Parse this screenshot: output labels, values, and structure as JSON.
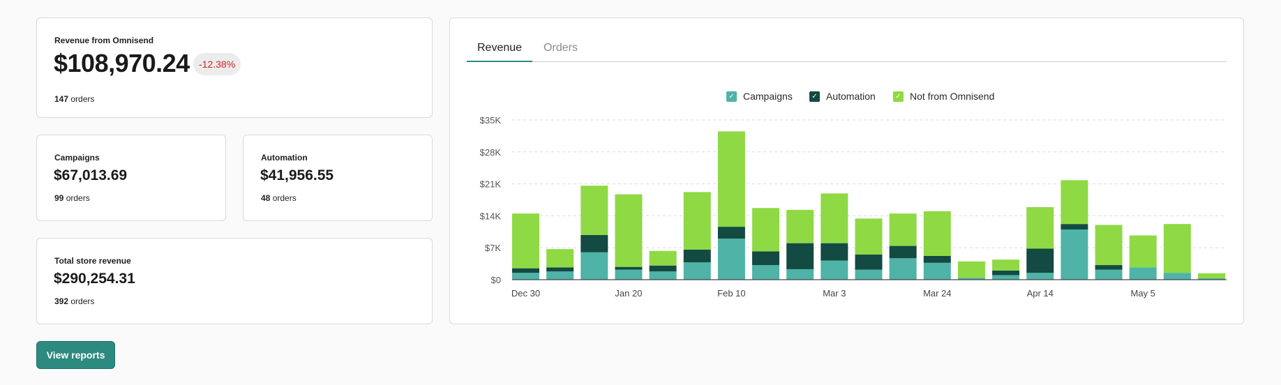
{
  "summary": {
    "main": {
      "label": "Revenue from Omnisend",
      "value": "$108,970.24",
      "change": "-12.38%",
      "orders_count": "147",
      "orders_word": "orders"
    },
    "campaigns": {
      "label": "Campaigns",
      "value": "$67,013.69",
      "orders_count": "99",
      "orders_word": "orders"
    },
    "automation": {
      "label": "Automation",
      "value": "$41,956.55",
      "orders_count": "48",
      "orders_word": "orders"
    },
    "total": {
      "label": "Total store revenue",
      "value": "$290,254.31",
      "orders_count": "392",
      "orders_word": "orders"
    }
  },
  "button": {
    "label": "View reports"
  },
  "tabs": [
    {
      "label": "Revenue"
    },
    {
      "label": "Orders"
    }
  ],
  "legend": [
    {
      "label": "Campaigns",
      "color": "#4fb3a7"
    },
    {
      "label": "Automation",
      "color": "#134a42"
    },
    {
      "label": "Not from Omnisend",
      "color": "#8fd944"
    }
  ],
  "chart_data": {
    "type": "bar",
    "stacked": true,
    "y_tick_labels": [
      "$0",
      "$7K",
      "$14K",
      "$21K",
      "$28K",
      "$35K"
    ],
    "ylim": [
      0,
      35000
    ],
    "x_tick_labels": [
      {
        "index": 0,
        "label": "Dec 30"
      },
      {
        "index": 3,
        "label": "Jan 20"
      },
      {
        "index": 6,
        "label": "Feb 10"
      },
      {
        "index": 9,
        "label": "Mar 3"
      },
      {
        "index": 12,
        "label": "Mar 24"
      },
      {
        "index": 15,
        "label": "Apr 14"
      },
      {
        "index": 18,
        "label": "May 5"
      }
    ],
    "grid": true,
    "legend_position": "top",
    "series": [
      {
        "name": "Campaigns",
        "color": "#4fb3a7",
        "values": [
          1500,
          1800,
          6000,
          2200,
          1800,
          3800,
          9000,
          3200,
          2300,
          4200,
          2200,
          4700,
          3700,
          400,
          1000,
          1500,
          11000,
          2200,
          2700,
          1500,
          300
        ]
      },
      {
        "name": "Automation",
        "color": "#134a42",
        "values": [
          1000,
          900,
          3800,
          600,
          1300,
          2800,
          2600,
          3000,
          5700,
          3800,
          3300,
          2700,
          1500,
          0,
          1000,
          5300,
          1200,
          1000,
          0,
          0,
          0
        ]
      },
      {
        "name": "Not from Omnisend",
        "color": "#8fd944",
        "values": [
          12000,
          4000,
          10800,
          15900,
          3200,
          12600,
          20900,
          9500,
          7300,
          10900,
          7900,
          7100,
          9800,
          3600,
          2400,
          9100,
          9600,
          8800,
          7000,
          10700,
          1100
        ]
      }
    ]
  }
}
